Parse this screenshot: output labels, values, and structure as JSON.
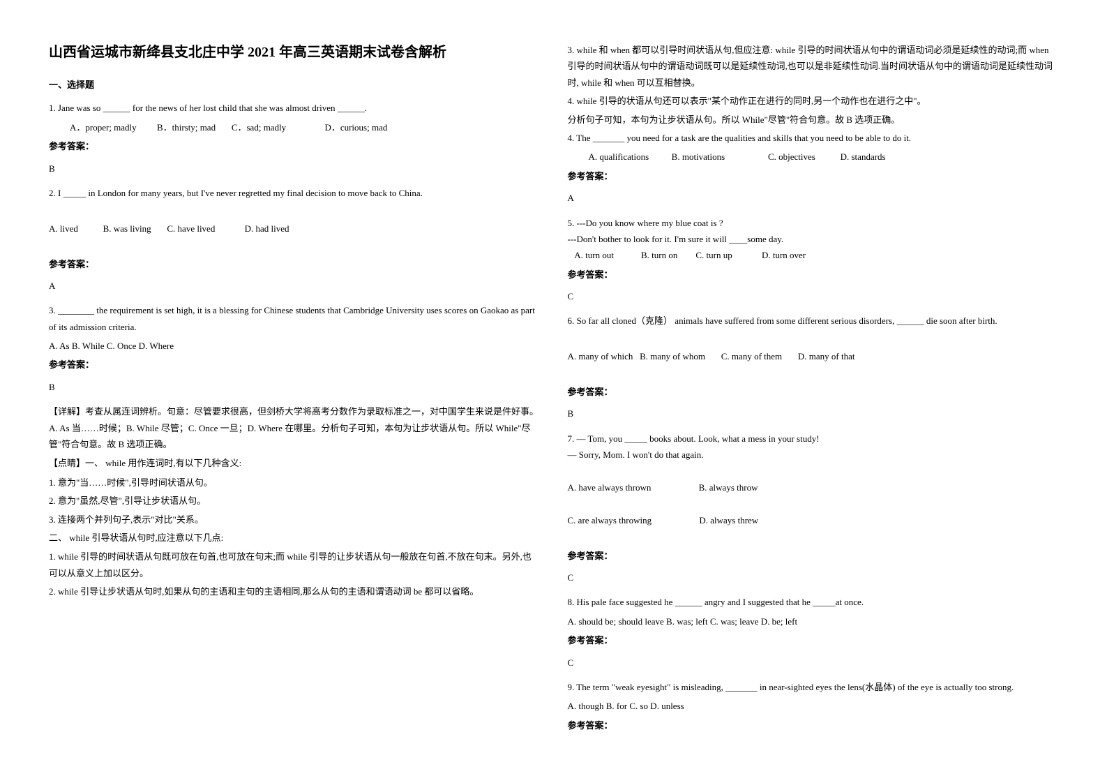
{
  "title": "山西省运城市新绛县支北庄中学 2021 年高三英语期末试卷含解析",
  "section1": "一、选择题",
  "q1": {
    "text": "1. Jane was so ______ for the news of her lost child that she was almost driven ______.",
    "optA": "A．proper; madly",
    "optB": "B．thirsty; mad",
    "optC": "C．sad; madly",
    "optD": "D．curious; mad",
    "answerLabel": "参考答案：",
    "answer": "B"
  },
  "q2": {
    "text": "2. I _____ in London for many years, but I've never regretted my final decision to move back to China.",
    "optA": "A. lived",
    "optB": "B. was living",
    "optC": "C. have lived",
    "optD": "D. had lived",
    "answerLabel": "参考答案：",
    "answer": "A"
  },
  "q3": {
    "text": "3. ________ the requirement is set high, it is a blessing for Chinese students that Cambridge University uses scores on Gaokao as part of its admission criteria.",
    "options": "A. As    B. While        C. Once D. Where",
    "answerLabel": "参考答案：",
    "answer": "B",
    "exp1": "【详解】考查从属连词辨析。句意：尽管要求很高，但剑桥大学将高考分数作为录取标准之一，对中国学生来说是件好事。A. As 当……时候；B. While 尽管；C. Once 一旦；D. Where 在哪里。分析句子可知，本句为让步状语从句。所以 While\"尽管\"符合句意。故 B 选项正确。",
    "exp2": "【点睛】一、 while 用作连词时,有以下几种含义:",
    "exp3": "1. 意为\"当……时候\",引导时间状语从句。",
    "exp4": "2. 意为\"虽然,尽管\",引导让步状语从句。",
    "exp5": "3. 连接两个并列句子,表示\"对比\"关系。",
    "exp6": "二、 while 引导状语从句时,应注意以下几点:",
    "exp7": "1. while 引导的时间状语从句既可放在句首,也可放在句末;而 while 引导的让步状语从句一般放在句首,不放在句末。另外,也可以从意义上加以区分。",
    "exp8": "2. while 引导让步状语从句时,如果从句的主语和主句的主语相同,那么从句的主语和谓语动词 be 都可以省略。",
    "exp9": "3. while 和 when 都可以引导时间状语从句,但应注意: while 引导的时间状语从句中的谓语动词必须是延续性的动词;而 when 引导的时间状语从句中的谓语动词既可以是延续性动词,也可以是非延续性动词.当时间状语从句中的谓语动词是延续性动词时, while 和 when 可以互相替换。",
    "exp10": "4. while 引导的状语从句还可以表示\"某个动作正在进行的同时,另一个动作也在进行之中\"。",
    "exp11": "分析句子可知，本句为让步状语从句。所以 While\"尽管\"符合句意。故 B 选项正确。"
  },
  "q4": {
    "text": "4. The _______ you need for a task are the qualities and skills that you need to be able to do it.",
    "optA": "A. qualifications",
    "optB": "B. motivations",
    "optC": "C. objectives",
    "optD": "D. standards",
    "answerLabel": "参考答案：",
    "answer": "A"
  },
  "q5": {
    "text1": "5. ---Do you know where my blue coat is ?",
    "text2": "   ---Don't bother to look for it. I'm sure it will ____some day.",
    "optA": "A. turn out",
    "optB": "B. turn on",
    "optC": "C. turn up",
    "optD": "D. turn over",
    "answerLabel": "参考答案：",
    "answer": "C"
  },
  "q6": {
    "text": "6. So far all cloned（克隆） animals have suffered from some different serious disorders, ______ die soon after birth.",
    "optA": "A. many of which",
    "optB": "B. many of whom",
    "optC": "C. many of them",
    "optD": "D. many of that",
    "answerLabel": "参考答案：",
    "answer": "B"
  },
  "q7": {
    "text1": "7. — Tom, you _____ books about. Look, what a mess in your study!",
    "text2": " — Sorry, Mom. I won't do that again.",
    "optA": "A. have always thrown",
    "optB": "B. always throw",
    "optC": "C. are always throwing",
    "optD": "D. always threw",
    "answerLabel": "参考答案：",
    "answer": "C"
  },
  "q8": {
    "text": "8. His pale face suggested he ______ angry and I suggested that he _____at once.",
    "options": "A. should be; should leave    B. was; left   C. was; leave    D. be; left",
    "answerLabel": "参考答案：",
    "answer": "C"
  },
  "q9": {
    "text": "9. The term \"weak eyesight\" is misleading, _______ in near-sighted eyes the lens(水晶体) of the eye is actually too strong.",
    "options": "A. though  B. for  C. so  D. unless",
    "answerLabel": "参考答案："
  }
}
